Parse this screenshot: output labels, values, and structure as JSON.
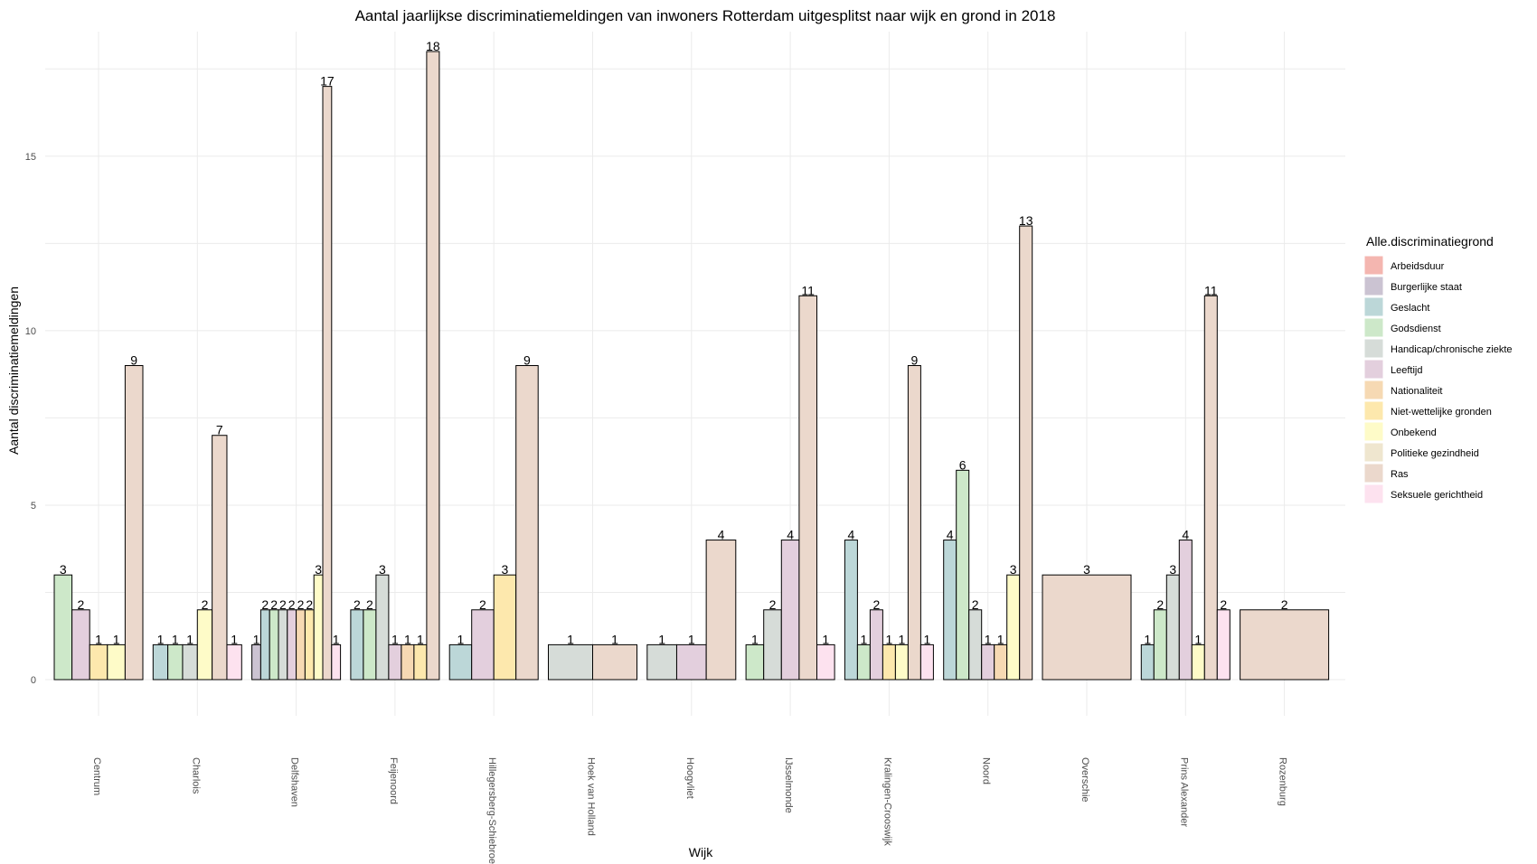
{
  "chart_data": {
    "type": "bar",
    "title": "Aantal jaarlijkse discriminatiemeldingen van inwoners Rotterdam uitgesplitst naar wijk en grond in 2018",
    "xlabel": "Wijk",
    "ylabel": "Aantal discriminatiemeldingen",
    "ylim": [
      0,
      18.9
    ],
    "yticks": [
      0,
      5,
      10,
      15
    ],
    "grid": true,
    "legend": {
      "title": "Alle.discriminatiegrond",
      "placement": "right"
    },
    "grounds": [
      {
        "name": "Arbeidsduur",
        "color": "#f4b6b0"
      },
      {
        "name": "Burgerlijke staat",
        "color": "#cbc3d2"
      },
      {
        "name": "Geslacht",
        "color": "#bcd7d8"
      },
      {
        "name": "Godsdienst",
        "color": "#cde8c9"
      },
      {
        "name": "Handicap/chronische ziekte",
        "color": "#d6dcd8"
      },
      {
        "name": "Leeftijd",
        "color": "#e3cfdd"
      },
      {
        "name": "Nationaliteit",
        "color": "#f6d9b3"
      },
      {
        "name": "Niet-wettelijke gronden",
        "color": "#fde8ad"
      },
      {
        "name": "Onbekend",
        "color": "#fefbc8"
      },
      {
        "name": "Politieke gezindheid",
        "color": "#efe6cf"
      },
      {
        "name": "Ras",
        "color": "#ebd8cc"
      },
      {
        "name": "Seksuele gerichtheid",
        "color": "#fde2ef"
      }
    ],
    "categories": [
      "Centrum",
      "Charlois",
      "Delfshaven",
      "Feijenoord",
      "Hillegersberg-Schiebroek",
      "Hoek van Holland",
      "Hoogvliet",
      "IJsselmonde",
      "Kralingen-Crooswijk",
      "Noord",
      "Overschie",
      "Prins Alexander",
      "Rozenburg"
    ],
    "bars": [
      [
        {
          "ground": "Godsdienst",
          "value": 3
        },
        {
          "ground": "Leeftijd",
          "value": 2
        },
        {
          "ground": "Niet-wettelijke gronden",
          "value": 1
        },
        {
          "ground": "Onbekend",
          "value": 1
        },
        {
          "ground": "Ras",
          "value": 9
        }
      ],
      [
        {
          "ground": "Geslacht",
          "value": 1
        },
        {
          "ground": "Godsdienst",
          "value": 1
        },
        {
          "ground": "Handicap/chronische ziekte",
          "value": 1
        },
        {
          "ground": "Onbekend",
          "value": 2
        },
        {
          "ground": "Ras",
          "value": 7
        },
        {
          "ground": "Seksuele gerichtheid",
          "value": 1
        }
      ],
      [
        {
          "ground": "Burgerlijke staat",
          "value": 1
        },
        {
          "ground": "Geslacht",
          "value": 2
        },
        {
          "ground": "Godsdienst",
          "value": 2
        },
        {
          "ground": "Handicap/chronische ziekte",
          "value": 2
        },
        {
          "ground": "Leeftijd",
          "value": 2
        },
        {
          "ground": "Nationaliteit",
          "value": 2
        },
        {
          "ground": "Niet-wettelijke gronden",
          "value": 2
        },
        {
          "ground": "Onbekend",
          "value": 3
        },
        {
          "ground": "Ras",
          "value": 17
        },
        {
          "ground": "Seksuele gerichtheid",
          "value": 1
        }
      ],
      [
        {
          "ground": "Geslacht",
          "value": 2
        },
        {
          "ground": "Godsdienst",
          "value": 2
        },
        {
          "ground": "Handicap/chronische ziekte",
          "value": 3
        },
        {
          "ground": "Leeftijd",
          "value": 1
        },
        {
          "ground": "Nationaliteit",
          "value": 1
        },
        {
          "ground": "Niet-wettelijke gronden",
          "value": 1
        },
        {
          "ground": "Ras",
          "value": 18
        }
      ],
      [
        {
          "ground": "Geslacht",
          "value": 1
        },
        {
          "ground": "Leeftijd",
          "value": 2
        },
        {
          "ground": "Niet-wettelijke gronden",
          "value": 3
        },
        {
          "ground": "Ras",
          "value": 9
        }
      ],
      [
        {
          "ground": "Handicap/chronische ziekte",
          "value": 1
        },
        {
          "ground": "Ras",
          "value": 1
        }
      ],
      [
        {
          "ground": "Handicap/chronische ziekte",
          "value": 1
        },
        {
          "ground": "Leeftijd",
          "value": 1
        },
        {
          "ground": "Ras",
          "value": 4
        }
      ],
      [
        {
          "ground": "Godsdienst",
          "value": 1
        },
        {
          "ground": "Handicap/chronische ziekte",
          "value": 2
        },
        {
          "ground": "Leeftijd",
          "value": 4
        },
        {
          "ground": "Ras",
          "value": 11
        },
        {
          "ground": "Seksuele gerichtheid",
          "value": 1
        }
      ],
      [
        {
          "ground": "Geslacht",
          "value": 4
        },
        {
          "ground": "Godsdienst",
          "value": 1
        },
        {
          "ground": "Leeftijd",
          "value": 2
        },
        {
          "ground": "Niet-wettelijke gronden",
          "value": 1
        },
        {
          "ground": "Onbekend",
          "value": 1
        },
        {
          "ground": "Ras",
          "value": 9
        },
        {
          "ground": "Seksuele gerichtheid",
          "value": 1
        }
      ],
      [
        {
          "ground": "Geslacht",
          "value": 4
        },
        {
          "ground": "Godsdienst",
          "value": 6
        },
        {
          "ground": "Handicap/chronische ziekte",
          "value": 2
        },
        {
          "ground": "Leeftijd",
          "value": 1
        },
        {
          "ground": "Nationaliteit",
          "value": 1
        },
        {
          "ground": "Onbekend",
          "value": 3
        },
        {
          "ground": "Ras",
          "value": 13
        }
      ],
      [
        {
          "ground": "Ras",
          "value": 3
        }
      ],
      [
        {
          "ground": "Geslacht",
          "value": 1
        },
        {
          "ground": "Godsdienst",
          "value": 2
        },
        {
          "ground": "Handicap/chronische ziekte",
          "value": 3
        },
        {
          "ground": "Leeftijd",
          "value": 4
        },
        {
          "ground": "Onbekend",
          "value": 1
        },
        {
          "ground": "Ras",
          "value": 11
        },
        {
          "ground": "Seksuele gerichtheid",
          "value": 2
        }
      ],
      [
        {
          "ground": "Ras",
          "value": 2
        }
      ]
    ]
  }
}
